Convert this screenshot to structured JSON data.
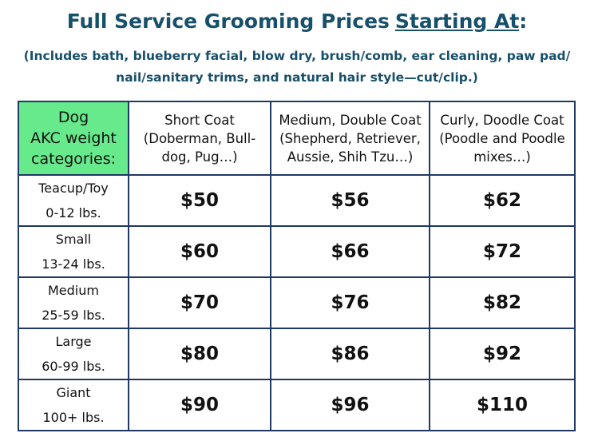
{
  "header": {
    "title_parts": [
      "Full Service Grooming Prices",
      "Starting At",
      ":"
    ],
    "subtitle_lines": [
      "(Includes bath, blueberry facial, blow dry, brush/comb, ear cleaning, paw pad/",
      "nail/sanitary trims, and natural hair style—cut/clip.)"
    ]
  },
  "table": {
    "columns": [
      [
        "Dog",
        "AKC weight",
        "categories:"
      ],
      [
        "Short Coat",
        "(Doberman, Bull-",
        "dog, Pug…)"
      ],
      [
        "Medium, Double Coat",
        "(Shepherd, Retriever,",
        "Aussie, Shih Tzu…)"
      ],
      [
        "Curly, Doodle Coat",
        "(Poodle and Poodle",
        "mixes…)"
      ]
    ],
    "rows": [
      {
        "category": "Teacup/Toy",
        "weight": "0-12 lbs.",
        "prices": [
          "$50",
          "$56",
          "$62"
        ]
      },
      {
        "category": "Small",
        "weight": "13-24 lbs.",
        "prices": [
          "$60",
          "$66",
          "$72"
        ]
      },
      {
        "category": "Medium",
        "weight": "25-59 lbs.",
        "prices": [
          "$70",
          "$76",
          "$82"
        ]
      },
      {
        "category": "Large",
        "weight": "60-99 lbs.",
        "prices": [
          "$80",
          "$86",
          "$92"
        ]
      },
      {
        "category": "Giant",
        "weight": "100+ lbs.",
        "prices": [
          "$90",
          "$96",
          "$110"
        ]
      }
    ]
  }
}
